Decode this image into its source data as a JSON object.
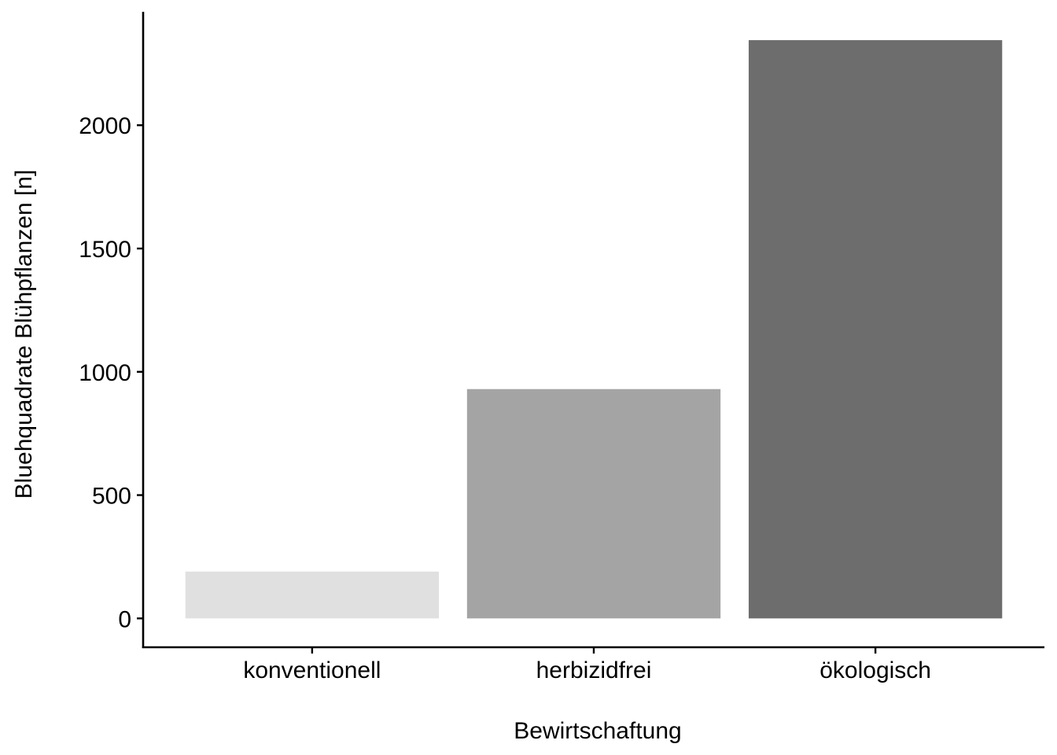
{
  "chart_data": {
    "type": "bar",
    "categories": [
      "konventionell",
      "herbizidfrei",
      "ökologisch"
    ],
    "values": [
      190,
      930,
      2345
    ],
    "bar_colors": [
      "#e0e0e0",
      "#a4a4a4",
      "#6d6d6d"
    ],
    "xlabel": "Bewirtschaftung",
    "ylabel": "Bluehquadrate Blühpflanzen [n]",
    "yticks": [
      0,
      500,
      1000,
      1500,
      2000
    ],
    "ylim": [
      -117,
      2460
    ],
    "grid": false,
    "legend": "none"
  }
}
